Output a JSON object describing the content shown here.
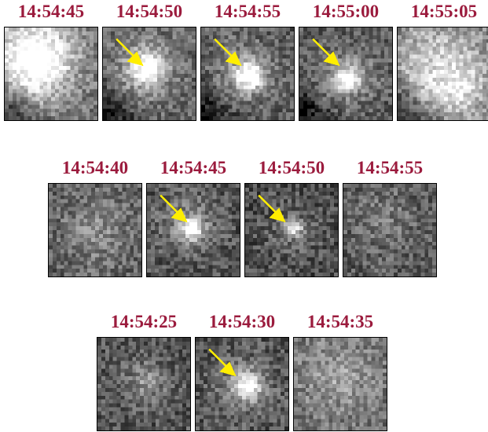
{
  "rows": [
    {
      "frames": [
        {
          "time": "14:54:45",
          "arrow": false,
          "seed": 11,
          "base": 110,
          "bright": [
            [
              6,
              6,
              9,
              120
            ],
            [
              9,
              9,
              5,
              90
            ]
          ],
          "dark": "bottom-left"
        },
        {
          "time": "14:54:50",
          "arrow": true,
          "seed": 23,
          "base": 95,
          "bright": [
            [
              11,
              10,
              3,
              150
            ],
            [
              10,
              10,
              7,
              55
            ]
          ],
          "dark": "bottom-left"
        },
        {
          "time": "14:54:55",
          "arrow": true,
          "seed": 37,
          "base": 90,
          "bright": [
            [
              12,
              12,
              2.5,
              170
            ],
            [
              11,
              11,
              6,
              55
            ]
          ],
          "dark": "bottom-left"
        },
        {
          "time": "14:55:00",
          "arrow": true,
          "seed": 41,
          "base": 85,
          "bright": [
            [
              12,
              13,
              2,
              170
            ],
            [
              12,
              12,
              6,
              60
            ]
          ],
          "dark": "bottom-left"
        },
        {
          "time": "14:55:05",
          "arrow": false,
          "seed": 53,
          "base": 120,
          "bright": [
            [
              10,
              9,
              8,
              90
            ],
            [
              16,
              16,
              5,
              70
            ]
          ],
          "dark": "bottom-left"
        }
      ]
    },
    {
      "frames": [
        {
          "time": "14:54:40",
          "arrow": false,
          "seed": 61,
          "base": 95,
          "bright": [
            [
              12,
              12,
              6,
              45
            ]
          ],
          "dark": "none"
        },
        {
          "time": "14:54:45",
          "arrow": true,
          "seed": 73,
          "base": 80,
          "bright": [
            [
              11,
              11,
              2,
              170
            ],
            [
              10,
              10,
              6,
              50
            ]
          ],
          "dark": "none"
        },
        {
          "time": "14:54:50",
          "arrow": true,
          "seed": 89,
          "base": 75,
          "bright": [
            [
              12,
              11,
              1.5,
              150
            ],
            [
              12,
              12,
              5,
              35
            ]
          ],
          "dark": "none"
        },
        {
          "time": "14:54:55",
          "arrow": false,
          "seed": 97,
          "base": 90,
          "bright": [
            [
              10,
              8,
              6,
              30
            ]
          ],
          "dark": "none"
        }
      ]
    },
    {
      "frames": [
        {
          "time": "14:54:25",
          "arrow": false,
          "seed": 101,
          "base": 85,
          "bright": [
            [
              12,
              11,
              4,
              60
            ]
          ],
          "dark": "none"
        },
        {
          "time": "14:54:30",
          "arrow": true,
          "seed": 113,
          "base": 80,
          "bright": [
            [
              13,
              12,
              2.5,
              150
            ],
            [
              12,
              12,
              6,
              45
            ]
          ],
          "dark": "none"
        },
        {
          "time": "14:54:35",
          "arrow": false,
          "seed": 127,
          "base": 110,
          "bright": [
            [
              11,
              10,
              7,
              50
            ]
          ],
          "dark": "none"
        }
      ]
    }
  ]
}
